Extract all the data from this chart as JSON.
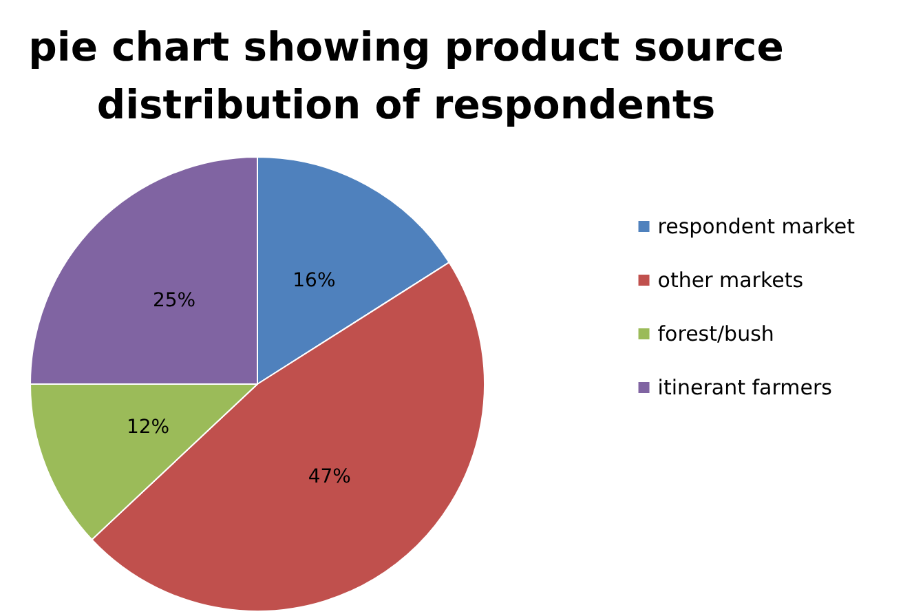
{
  "chart_data": {
    "type": "pie",
    "title": "pie chart showing product source\ndistribution of respondents",
    "categories": [
      "respondent market",
      "other markets",
      "forest/bush",
      "itinerant farmers"
    ],
    "values": [
      16,
      47,
      12,
      25
    ],
    "value_labels": [
      "16%",
      "47%",
      "12%",
      "25%"
    ],
    "colors": [
      "#4f81bd",
      "#c0504d",
      "#9bbb59",
      "#8064a2"
    ],
    "legend": "right"
  }
}
